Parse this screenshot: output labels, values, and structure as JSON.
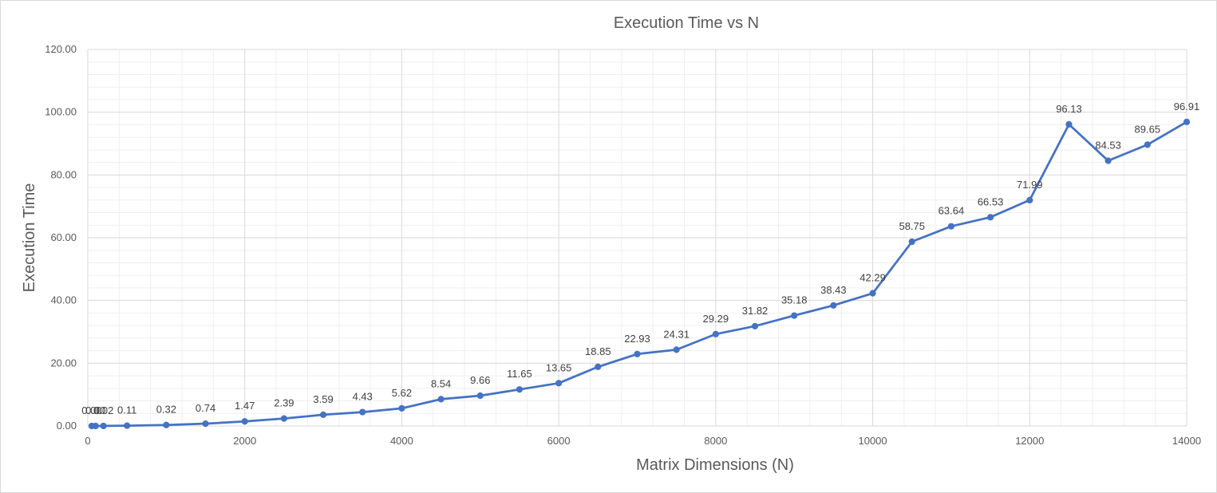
{
  "chart_data": {
    "type": "line",
    "title": "Execution Time vs N",
    "xlabel": "Matrix Dimensions (N)",
    "ylabel": "Execution Time",
    "xlim": [
      0,
      14000
    ],
    "ylim": [
      0,
      120
    ],
    "x_ticks": [
      "0",
      "2000",
      "4000",
      "6000",
      "8000",
      "10000",
      "12000",
      "14000"
    ],
    "y_ticks": [
      "0.00",
      "20.00",
      "40.00",
      "60.00",
      "80.00",
      "100.00",
      "120.00"
    ],
    "grid": true,
    "legend": "none",
    "color": "#4472c4",
    "series": [
      {
        "points": [
          {
            "x": 50,
            "y": 0.0,
            "label": "0.00"
          },
          {
            "x": 100,
            "y": 0.0,
            "label": "0.00"
          },
          {
            "x": 200,
            "y": 0.02,
            "label": "0.02"
          },
          {
            "x": 500,
            "y": 0.11,
            "label": "0.11"
          },
          {
            "x": 1000,
            "y": 0.32,
            "label": "0.32"
          },
          {
            "x": 1500,
            "y": 0.74,
            "label": "0.74"
          },
          {
            "x": 2000,
            "y": 1.47,
            "label": "1.47"
          },
          {
            "x": 2500,
            "y": 2.39,
            "label": "2.39"
          },
          {
            "x": 3000,
            "y": 3.59,
            "label": "3.59"
          },
          {
            "x": 3500,
            "y": 4.43,
            "label": "4.43"
          },
          {
            "x": 4000,
            "y": 5.62,
            "label": "5.62"
          },
          {
            "x": 4500,
            "y": 8.54,
            "label": "8.54"
          },
          {
            "x": 5000,
            "y": 9.66,
            "label": "9.66"
          },
          {
            "x": 5500,
            "y": 11.65,
            "label": "11.65"
          },
          {
            "x": 6000,
            "y": 13.65,
            "label": "13.65"
          },
          {
            "x": 6500,
            "y": 18.85,
            "label": "18.85"
          },
          {
            "x": 7000,
            "y": 22.93,
            "label": "22.93"
          },
          {
            "x": 7500,
            "y": 24.31,
            "label": "24.31"
          },
          {
            "x": 8000,
            "y": 29.29,
            "label": "29.29"
          },
          {
            "x": 8500,
            "y": 31.82,
            "label": "31.82"
          },
          {
            "x": 9000,
            "y": 35.18,
            "label": "35.18"
          },
          {
            "x": 9500,
            "y": 38.43,
            "label": "38.43"
          },
          {
            "x": 10000,
            "y": 42.29,
            "label": "42.29"
          },
          {
            "x": 10500,
            "y": 58.75,
            "label": "58.75"
          },
          {
            "x": 11000,
            "y": 63.64,
            "label": "63.64"
          },
          {
            "x": 11500,
            "y": 66.53,
            "label": "66.53"
          },
          {
            "x": 12000,
            "y": 71.99,
            "label": "71.99"
          },
          {
            "x": 12500,
            "y": 96.13,
            "label": "96.13"
          },
          {
            "x": 13000,
            "y": 84.53,
            "label": "84.53"
          },
          {
            "x": 13500,
            "y": 89.65,
            "label": "89.65"
          },
          {
            "x": 14000,
            "y": 96.91,
            "label": "96.91"
          }
        ]
      }
    ]
  }
}
